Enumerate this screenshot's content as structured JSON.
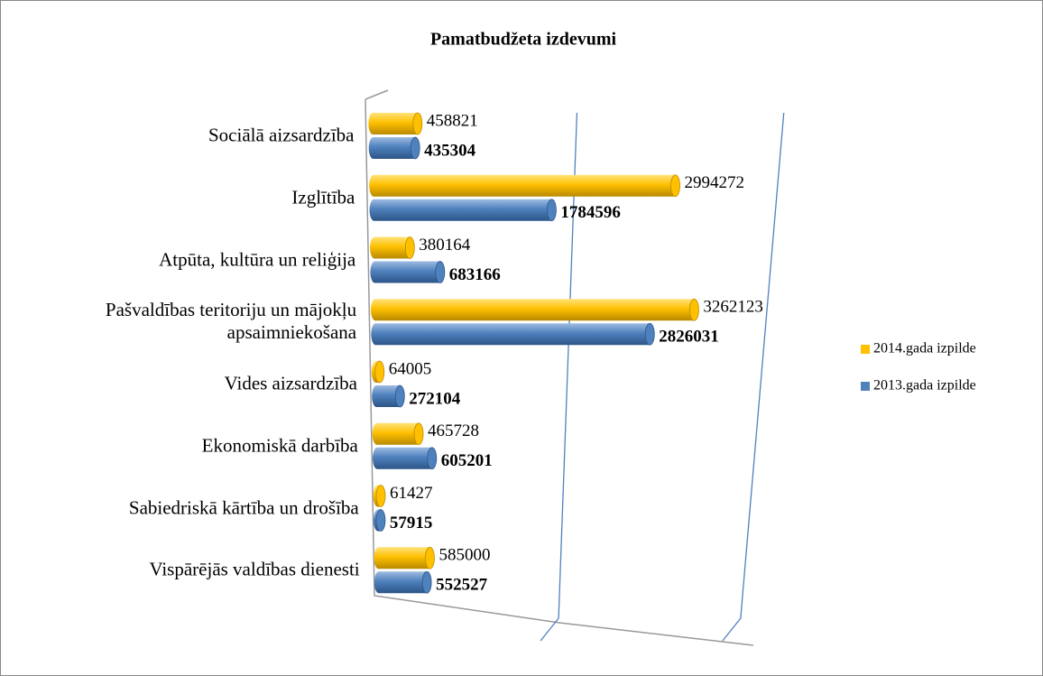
{
  "chart_data": {
    "type": "bar",
    "orientation": "horizontal",
    "title": "Pamatbudžeta izdevumi",
    "categories": [
      "Sociālā aizsardzība",
      "Izglītība",
      "Atpūta, kultūra un reliģija",
      "Pašvaldības teritoriju un mājokļu apsaimniekošana",
      "Vides aizsardzība",
      "Ekonomiskā darbība",
      "Sabiedriskā kārtība un drošība",
      "Vispārējās valdības dienesti"
    ],
    "series": [
      {
        "name": "2014.gada izpilde",
        "color": "#FFC000",
        "values": [
          458821,
          2994272,
          380164,
          3262123,
          64005,
          465728,
          61427,
          585000
        ]
      },
      {
        "name": "2013.gada izpilde",
        "color": "#4F81BD",
        "values": [
          435304,
          1784596,
          683166,
          2826031,
          272104,
          605201,
          57915,
          552527
        ]
      }
    ],
    "xlim": [
      0,
      4000000
    ],
    "xticks": [
      0,
      2000000,
      4000000
    ],
    "grid": true,
    "legend": "right"
  }
}
